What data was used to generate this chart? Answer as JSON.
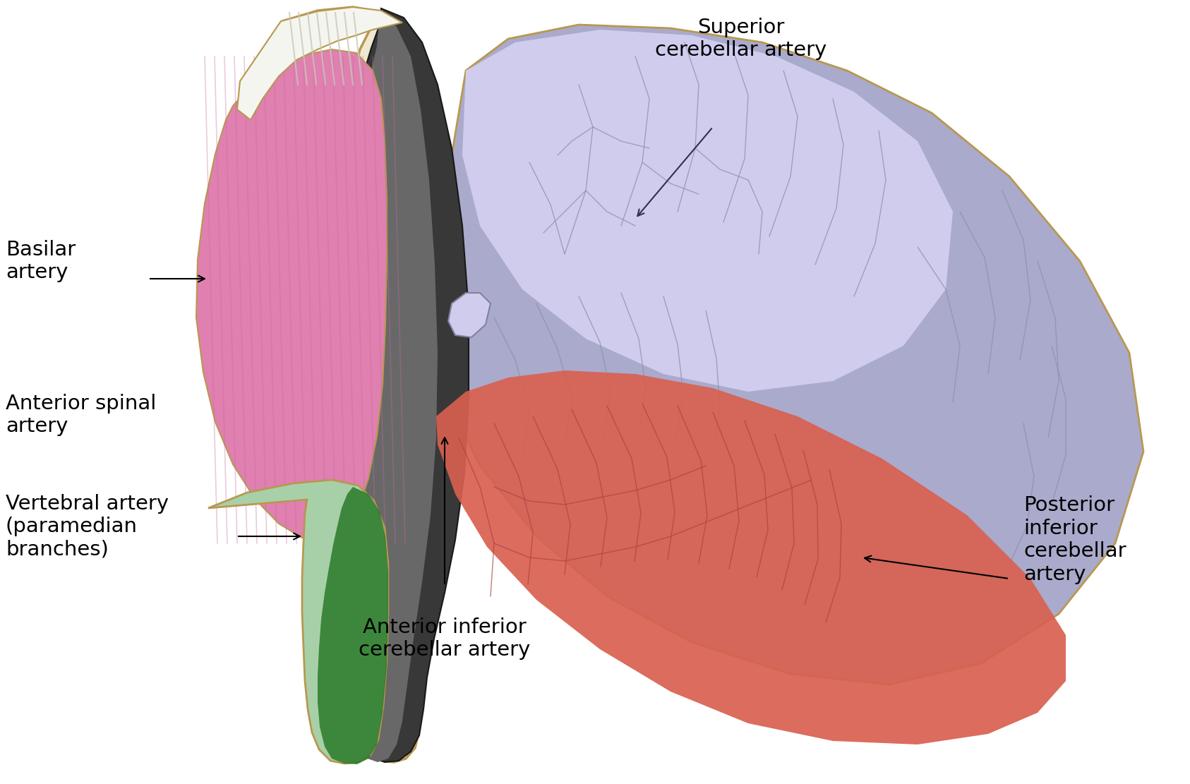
{
  "figure_width": 16.86,
  "figure_height": 11.11,
  "dpi": 100,
  "background_color": "#ffffff",
  "colors": {
    "basilar_pink": "#E080B0",
    "basilar_stripe": "#C868A0",
    "brainstem_cream": "#F0E8D0",
    "brainstem_dark_gray": "#383838",
    "brainstem_mid_gray": "#686868",
    "brainstem_light_gray": "#909090",
    "brainstem_tan_outline": "#B89850",
    "cerebellum_purple": "#AAAACC",
    "cerebellum_purple_light": "#C0BCD8",
    "cerebellum_purple_vlight": "#D0CCEE",
    "pica_red": "#D86050",
    "vertebral_green": "#A8D0A8",
    "vertebral_green_dark": "#2A7A2A",
    "white_top": "#F5F5F0",
    "folia_line": "#9090A8",
    "pica_folia": "#B04040",
    "arrow_dark": "#303050"
  },
  "labels": {
    "basilar": "Basilar\nartery",
    "superior_cerebellar": "Superior\ncerebellar artery",
    "anterior_inferior": "Anterior inferior\ncerebellar artery",
    "posterior_inferior": "Posterior\ninferior\ncerebellar\nartery",
    "anterior_spinal": "Anterior spinal\nartery",
    "vertebral": "Vertebral artery\n(paramedian\nbranches)"
  },
  "fontsize": 21
}
